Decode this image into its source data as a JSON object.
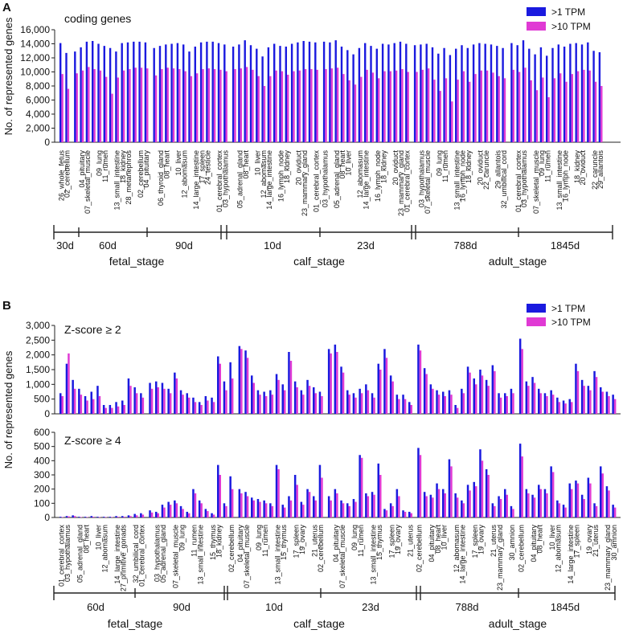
{
  "colors": {
    "tpm1": "#1a1adf",
    "tpm10": "#e03ad4",
    "axis": "#222222"
  },
  "panelA": {
    "letter": "A",
    "title": "coding genes",
    "ylabel": "No. of represented genes",
    "yticks": [
      "0",
      "2,000",
      "4,000",
      "6,000",
      "8,000",
      "10,000",
      "12,000",
      "14,000",
      "16,000"
    ],
    "ylim": [
      0,
      16000
    ],
    "legend": [
      ">1  TPM",
      ">10 TPM"
    ]
  },
  "panelB": {
    "letter": "B",
    "ylabel": "No. of represented genes",
    "legend": [
      ">1  TPM",
      ">10 TPM"
    ],
    "top": {
      "title": "Z-score ≥ 2",
      "yticks": [
        "0",
        "500",
        "1,000",
        "1,500",
        "2,000",
        "2,500",
        "3,000"
      ],
      "ylim": [
        0,
        3000
      ]
    },
    "bottom": {
      "title": "Z-score ≥ 4",
      "yticks": [
        "0",
        "100",
        "200",
        "300",
        "400",
        "500",
        "600"
      ],
      "ylim": [
        0,
        600
      ]
    }
  },
  "timelineA": {
    "ages": [
      "30d",
      "60d",
      "90d",
      "10d",
      "23d",
      "788d",
      "1845d"
    ],
    "stages": [
      "fetal_stage",
      "calf_stage",
      "adult_stage"
    ]
  },
  "timelineB": {
    "ages": [
      "60d",
      "90d",
      "10d",
      "23d",
      "788d",
      "1845d"
    ],
    "stages": [
      "fetal_stage",
      "calf_stage",
      "adult_stage"
    ]
  },
  "chart_data": [
    {
      "type": "bar",
      "title": "coding genes",
      "ylabel": "No. of represented genes",
      "ylim": [
        0,
        16000
      ],
      "tick_labels": [
        "26_whole_fetus",
        "02_cerebellum",
        "04_pituitary",
        "07_skeletal_muscle",
        "09_lung",
        "11_rumen",
        "13_small_intestine",
        "18_kidney",
        "28_metanephros",
        "02_cerebellum",
        "04_pituitary",
        "06_thyroid_gland",
        "08_heart",
        "10_liver",
        "12_abomasum",
        "14_large_intestine",
        "17_spleen",
        "24_testicle",
        "01_cerebral_cortex",
        "03_hypothalamus",
        "05_adrenal_gland",
        "08_heart",
        "10_liver",
        "12_abomasum",
        "14_large_intestine",
        "16_lymph_node",
        "18_kidney",
        "20_oviduct",
        "23_mammary_gland",
        "01_cerebral_cortex",
        "03_hypothalamus",
        "05_adrenal_gland",
        "08_heart",
        "10_liver",
        "12_abomasum",
        "14_large_intestine",
        "16_lymph_node",
        "18_kidney",
        "20_oviduct",
        "23_mammary_gland",
        "01_cerebral_cortex",
        "03_hypothalamus",
        "07_skeletal_muscle",
        "09_lung",
        "11_rumen",
        "13_small_intestine",
        "16_lymph_node",
        "18_kidney",
        "20_oviduct",
        "22_caruncle",
        "29_allantois",
        "32_umbilical_cord",
        "01_cerebral_cortex",
        "03_hypothalamus",
        "07_skeletal_muscle",
        "09_lung",
        "11_rumen",
        "13_small_intestine",
        "16_lymph_node",
        "18_kidney",
        "20_oviduct",
        "22_caruncle",
        "29_allantois"
      ],
      "groups": [
        {
          "name": "fetal_stage 30d",
          "n": 2,
          "tpm1": [
            14100,
            12700
          ],
          "tpm10": [
            9700,
            7600
          ]
        },
        {
          "name": "fetal_stage 60d",
          "n": 13,
          "tpm1": [
            12900,
            13500,
            14300,
            14400,
            14000,
            13700,
            13400,
            12900,
            14100,
            14200,
            14300,
            14300,
            14200
          ],
          "tpm10": [
            9800,
            10200,
            10700,
            10400,
            10200,
            9300,
            6900,
            9200,
            10200,
            10400,
            10600,
            10600,
            10500
          ]
        },
        {
          "name": "fetal_stage 90d",
          "n": 13,
          "tpm1": [
            13400,
            13700,
            13900,
            14000,
            14100,
            13900,
            12900,
            13600,
            14200,
            14300,
            14300,
            14100,
            13900
          ],
          "tpm10": [
            9500,
            10400,
            10600,
            10500,
            10400,
            10100,
            9400,
            9800,
            10400,
            10500,
            10400,
            10300,
            10100
          ]
        },
        {
          "name": "calf_stage 10d",
          "n": 15,
          "tpm1": [
            13600,
            13900,
            14500,
            13800,
            13300,
            12200,
            13500,
            14000,
            13700,
            13600,
            14000,
            14200,
            14400,
            14300,
            14200
          ],
          "tpm10": [
            10400,
            10500,
            10700,
            10300,
            9400,
            8000,
            9400,
            10200,
            10100,
            9600,
            10100,
            10200,
            10400,
            10400,
            10300
          ]
        },
        {
          "name": "calf_stage 23d",
          "n": 15,
          "tpm1": [
            14300,
            14200,
            14500,
            13600,
            13100,
            12500,
            13400,
            14100,
            13700,
            13300,
            14000,
            13900,
            14100,
            14300,
            14000
          ],
          "tpm10": [
            10400,
            10500,
            10600,
            9700,
            8800,
            8200,
            9300,
            10300,
            9900,
            9100,
            10100,
            10100,
            10200,
            10400,
            10000
          ]
        },
        {
          "name": "adult_stage 788d",
          "n": 16,
          "tpm1": [
            13800,
            13900,
            14000,
            13500,
            12600,
            13400,
            12400,
            13300,
            13800,
            13400,
            13900,
            14100,
            14000,
            13900,
            13700,
            13400
          ],
          "tpm10": [
            10000,
            10300,
            10500,
            8900,
            7300,
            9100,
            5800,
            8900,
            10100,
            8600,
            9700,
            10200,
            10200,
            9900,
            9400,
            9100
          ]
        },
        {
          "name": "adult_stage 1845d",
          "n": 16,
          "tpm1": [
            14100,
            13800,
            14500,
            13300,
            12500,
            13500,
            12300,
            13400,
            13900,
            13600,
            14000,
            14100,
            13900,
            14200,
            13000,
            12800
          ],
          "tpm10": [
            10300,
            10000,
            10600,
            8800,
            7400,
            9200,
            6400,
            9100,
            9800,
            8600,
            9700,
            10100,
            10300,
            10200,
            8600,
            8000
          ]
        }
      ]
    },
    {
      "type": "bar",
      "title": "Z-score ≥ 2",
      "ylabel": "No. of represented genes",
      "ylim": [
        0,
        3000
      ],
      "groups": [
        {
          "name": "fetal_stage 60d",
          "n": 14,
          "tpm1": [
            700,
            1700,
            1150,
            850,
            600,
            750,
            950,
            300,
            300,
            400,
            450,
            1200,
            900,
            700
          ],
          "tpm10": [
            600,
            2050,
            850,
            650,
            450,
            500,
            600,
            200,
            200,
            250,
            300,
            950,
            700,
            550
          ]
        },
        {
          "name": "fetal_stage 90d",
          "n": 14,
          "tpm1": [
            1050,
            1100,
            1050,
            850,
            1400,
            800,
            700,
            550,
            400,
            600,
            550,
            1950,
            1100,
            1750
          ],
          "tpm10": [
            850,
            900,
            850,
            700,
            1200,
            650,
            550,
            400,
            300,
            450,
            400,
            1700,
            800,
            1200
          ]
        },
        {
          "name": "calf_stage 10d",
          "n": 14,
          "tpm1": [
            2300,
            2150,
            1300,
            800,
            750,
            800,
            1350,
            1000,
            2100,
            1100,
            800,
            1150,
            900,
            750
          ],
          "tpm10": [
            2200,
            1900,
            1050,
            650,
            600,
            650,
            1150,
            800,
            1800,
            900,
            650,
            950,
            700,
            600
          ]
        },
        {
          "name": "calf_stage 23d",
          "n": 14,
          "tpm1": [
            2200,
            2350,
            1600,
            800,
            700,
            850,
            1000,
            700,
            1700,
            2200,
            1300,
            650,
            650,
            400
          ],
          "tpm10": [
            2050,
            2100,
            1400,
            650,
            550,
            700,
            800,
            550,
            1500,
            1900,
            1100,
            500,
            500,
            300
          ]
        },
        {
          "name": "adult_stage 788d",
          "n": 16,
          "tpm1": [
            2350,
            1550,
            1000,
            800,
            750,
            800,
            300,
            850,
            1600,
            1200,
            1500,
            1150,
            1650,
            700,
            700,
            850
          ],
          "tpm10": [
            2150,
            1350,
            850,
            650,
            600,
            650,
            200,
            700,
            1400,
            1000,
            1300,
            950,
            1450,
            550,
            600,
            700
          ]
        },
        {
          "name": "adult_stage 1845d",
          "n": 16,
          "tpm1": [
            2550,
            1100,
            1250,
            850,
            700,
            800,
            550,
            450,
            500,
            1700,
            1150,
            950,
            1450,
            900,
            750,
            650
          ],
          "tpm10": [
            2200,
            950,
            1050,
            700,
            600,
            650,
            400,
            350,
            400,
            1450,
            950,
            800,
            1250,
            750,
            600,
            500
          ]
        }
      ]
    },
    {
      "type": "bar",
      "title": "Z-score ≥ 4",
      "ylabel": "No. of represented genes",
      "ylim": [
        0,
        600
      ],
      "tick_labels": [
        "01_cerebral_cortex",
        "03_hypothalamus",
        "05_adrenal_gland",
        "08_heart",
        "10_liver",
        "12_abomasum",
        "14_large_intestine",
        "27_primitive_gonads",
        "32_umbilical_cord",
        "01_cerebral_cortex",
        "03_hypothalamus",
        "05_adrenal_gland",
        "07_skeletal_muscle",
        "09_lung",
        "11_rumen",
        "13_small_intestine",
        "15_thymus",
        "18_kidney",
        "02_cerebellum",
        "04_pituitary",
        "07_skeletal_muscle",
        "09_lung",
        "11_rumen",
        "13_small_intestine",
        "15_thymus",
        "17_spleen",
        "19_ovary",
        "21_uterus",
        "02_cerebellum",
        "04_pituitary",
        "07_skeletal_muscle",
        "09_lung",
        "11_rumen",
        "13_small_intestine",
        "15_thymus",
        "17_spleen",
        "19_ovary",
        "21_uterus",
        "02_cerebellum",
        "04_pituitary",
        "08_heart",
        "10_liver",
        "12_abomasum",
        "14_large_intestine",
        "17_spleen",
        "19_ovary",
        "21_uterus",
        "23_mammary_gland",
        "30_amnion",
        "02_cerebellum",
        "04_pituitary",
        "08_heart",
        "10_liver",
        "12_abomasum",
        "14_large_intestine",
        "17_spleen",
        "19_ovary",
        "21_uterus",
        "23_mammary_gland",
        "30_amnion"
      ],
      "groups": [
        {
          "name": "fetal_stage 60d",
          "n": 14,
          "tpm1": [
            5,
            10,
            15,
            5,
            5,
            10,
            5,
            5,
            5,
            10,
            10,
            15,
            25,
            30
          ],
          "tpm10": [
            3,
            8,
            10,
            3,
            3,
            5,
            3,
            3,
            3,
            5,
            5,
            10,
            15,
            20
          ]
        },
        {
          "name": "fetal_stage 90d",
          "n": 14,
          "tpm1": [
            50,
            40,
            90,
            110,
            120,
            80,
            40,
            200,
            120,
            60,
            30,
            370,
            100,
            290
          ],
          "tpm10": [
            35,
            30,
            70,
            90,
            100,
            60,
            30,
            170,
            100,
            45,
            20,
            300,
            80,
            200
          ]
        },
        {
          "name": "calf_stage 10d",
          "n": 14,
          "tpm1": [
            200,
            180,
            140,
            130,
            120,
            100,
            370,
            90,
            150,
            300,
            110,
            200,
            150,
            370
          ],
          "tpm10": [
            170,
            150,
            120,
            110,
            100,
            80,
            340,
            70,
            120,
            230,
            90,
            180,
            120,
            280
          ]
        },
        {
          "name": "calf_stage 23d",
          "n": 14,
          "tpm1": [
            150,
            200,
            120,
            100,
            130,
            440,
            170,
            180,
            380,
            60,
            100,
            200,
            50,
            40
          ],
          "tpm10": [
            120,
            170,
            100,
            80,
            110,
            420,
            150,
            160,
            300,
            50,
            80,
            150,
            40,
            30
          ]
        },
        {
          "name": "adult_stage 788d",
          "n": 16,
          "tpm1": [
            490,
            180,
            160,
            240,
            200,
            410,
            170,
            120,
            230,
            250,
            480,
            340,
            100,
            150,
            200,
            80
          ],
          "tpm10": [
            440,
            150,
            140,
            200,
            170,
            360,
            140,
            100,
            190,
            220,
            400,
            300,
            80,
            130,
            160,
            60
          ]
        },
        {
          "name": "adult_stage 1845d",
          "n": 16,
          "tpm1": [
            520,
            200,
            160,
            230,
            200,
            360,
            120,
            90,
            240,
            260,
            160,
            280,
            100,
            360,
            220,
            90
          ],
          "tpm10": [
            430,
            170,
            140,
            200,
            170,
            320,
            100,
            70,
            200,
            240,
            130,
            240,
            80,
            310,
            190,
            70
          ]
        }
      ]
    }
  ]
}
